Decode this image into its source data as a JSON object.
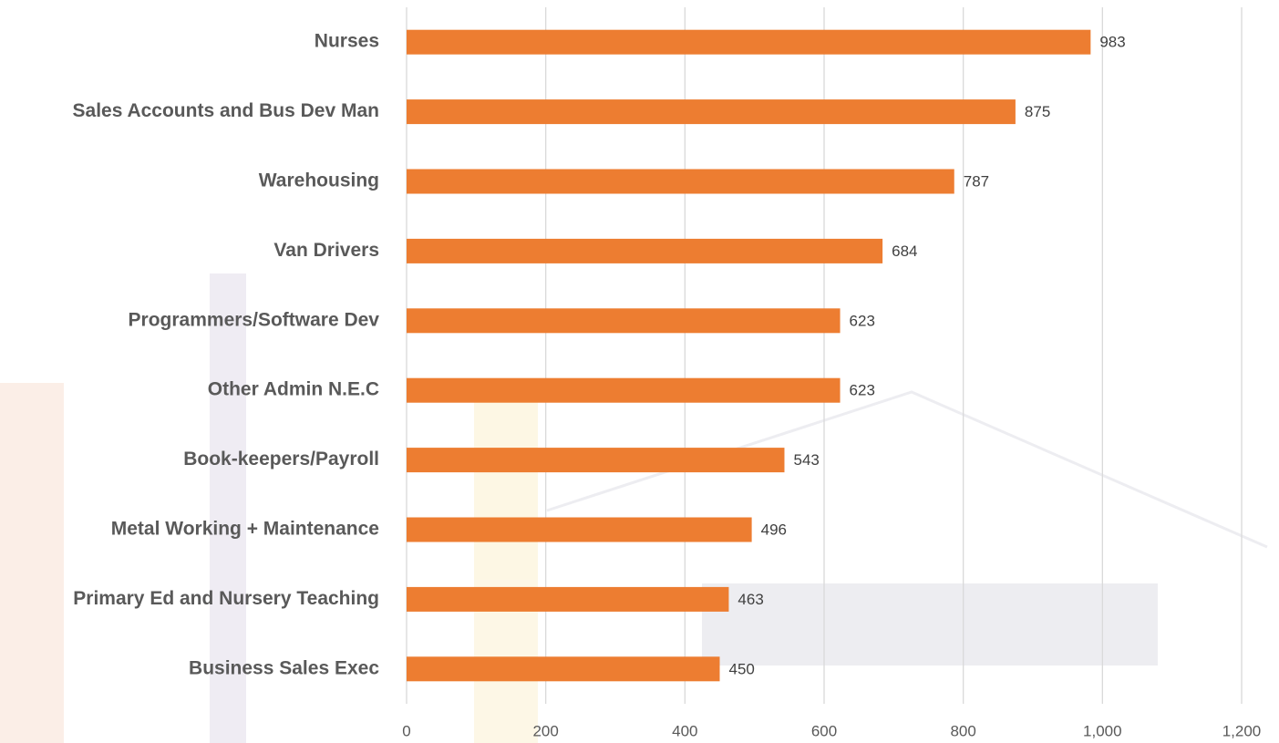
{
  "chart_data": {
    "type": "bar",
    "orientation": "horizontal",
    "categories": [
      "Nurses",
      "Sales Accounts and Bus Dev Man",
      "Warehousing",
      "Van Drivers",
      "Programmers/Software Dev",
      "Other Admin N.E.C",
      "Book-keepers/Payroll",
      "Metal Working + Maintenance",
      "Primary Ed and Nursery Teaching",
      "Business Sales Exec"
    ],
    "values": [
      983,
      875,
      787,
      684,
      623,
      623,
      543,
      496,
      463,
      450
    ],
    "color": "#ed7d31",
    "xlim": [
      0,
      1200
    ],
    "xticks": [
      0,
      200,
      400,
      600,
      800,
      {
        "value": 1000,
        "label": "1,000"
      },
      {
        "value": 1200,
        "label": "1,200"
      }
    ],
    "grid": true
  }
}
